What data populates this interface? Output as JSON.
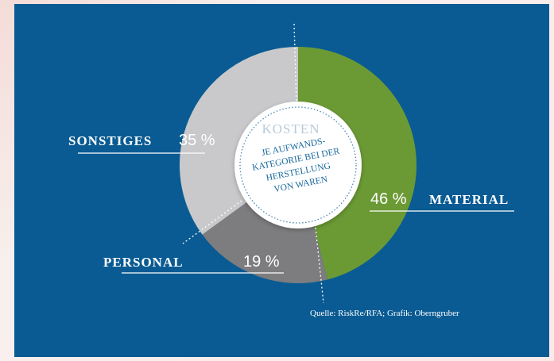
{
  "chart_data": {
    "type": "pie",
    "style": "donut",
    "categories": [
      "MATERIAL",
      "PERSONAL",
      "SONSTIGES"
    ],
    "values": [
      46,
      19,
      35
    ],
    "value_labels": [
      "46 %",
      "19 %",
      "35 %"
    ],
    "colors": [
      "#6b9a35",
      "#7d7d7f",
      "#c9c9cb"
    ],
    "center_title": "KOSTEN",
    "center_subtitle": [
      "JE AUFWANDS-",
      "KATEGORIE BEI DER",
      "HERSTELLUNG",
      "VON WAREN"
    ],
    "source": "Quelle: RiskRe/RFA; Grafik: Oberngruber",
    "background": "#0a5b93"
  }
}
